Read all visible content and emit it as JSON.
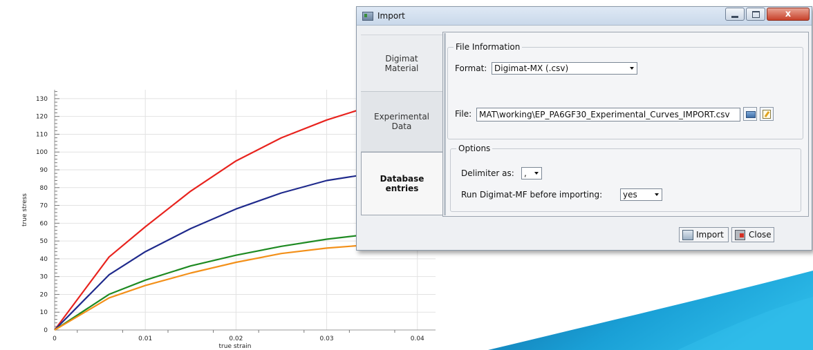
{
  "chart_data": {
    "type": "line",
    "xlabel": "true strain",
    "ylabel": "true stress",
    "xlim": [
      0,
      0.042
    ],
    "ylim": [
      0,
      135
    ],
    "x_ticks": [
      "0",
      "0.01",
      "0.02",
      "0.03",
      "0.04"
    ],
    "y_ticks": [
      "0",
      "10",
      "20",
      "30",
      "40",
      "50",
      "60",
      "70",
      "80",
      "90",
      "100",
      "110",
      "120",
      "130"
    ],
    "grid": true,
    "series": [
      {
        "color": "#e8231e",
        "x": [
          0,
          0.006,
          0.01,
          0.015,
          0.02,
          0.025,
          0.03,
          0.035
        ],
        "y": [
          0,
          41,
          58,
          78,
          95,
          108,
          118,
          126
        ]
      },
      {
        "color": "#1f2a8c",
        "x": [
          0,
          0.006,
          0.01,
          0.015,
          0.02,
          0.025,
          0.03,
          0.035
        ],
        "y": [
          0,
          31,
          44,
          57,
          68,
          77,
          84,
          88
        ]
      },
      {
        "color": "#1e8a22",
        "x": [
          0,
          0.006,
          0.01,
          0.015,
          0.02,
          0.025,
          0.03,
          0.035
        ],
        "y": [
          0,
          20,
          28,
          36,
          42,
          47,
          51,
          54
        ]
      },
      {
        "color": "#f39019",
        "x": [
          0,
          0.006,
          0.01,
          0.015,
          0.02,
          0.025,
          0.03,
          0.035
        ],
        "y": [
          0,
          18,
          25,
          32,
          38,
          43,
          46,
          48
        ]
      }
    ]
  },
  "dialog": {
    "title": "Import",
    "close_glyph": "x",
    "icons": {
      "app": "import-app-icon",
      "browse": "browse-folder-icon",
      "edit": "edit-file-icon"
    },
    "tabs": [
      {
        "line1": "Digimat",
        "line2": "Material"
      },
      {
        "line1": "Experimental",
        "line2": "Data"
      },
      {
        "line1": "Database",
        "line2": "entries"
      }
    ],
    "file_info": {
      "title": "File Information",
      "format_label": "Format:",
      "format_value": "Digimat-MX (.csv)",
      "file_label": "File:",
      "file_value": "MAT\\working\\EP_PA6GF30_Experimental_Curves_IMPORT.csv"
    },
    "options": {
      "title": "Options",
      "delimiter_label": "Delimiter as:",
      "delimiter_value": ",",
      "run_label": "Run Digimat-MF before importing:",
      "run_value": "yes"
    },
    "buttons": {
      "import": "Import",
      "close": "Close"
    }
  },
  "colors": {
    "accent_blue": "#1aa6d8",
    "accent_dark": "#0e6fa8"
  }
}
